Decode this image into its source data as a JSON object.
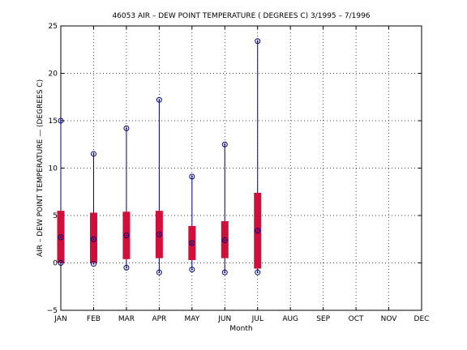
{
  "chart_data": {
    "type": "box",
    "title": "46053  AIR – DEW POINT TEMPERATURE ( DEGREES C) 3/1995 – 7/1996",
    "xlabel": "Month",
    "ylabel": "AIR – DEW POINT TEMPERATURE  —  (DEGREES C)",
    "categories": [
      "JAN",
      "FEB",
      "MAR",
      "APR",
      "MAY",
      "JUN",
      "JUL",
      "AUG",
      "SEP",
      "OCT",
      "NOV",
      "DEC"
    ],
    "yticks": [
      "−5",
      "0",
      "5",
      "10",
      "15",
      "20",
      "25"
    ],
    "ylim": [
      -5,
      25
    ],
    "grid": true,
    "colors": {
      "box": "#d0103a",
      "whisker": "#00007f",
      "marker": "#00007f"
    },
    "boxes": [
      {
        "month": "JAN",
        "min": 0.0,
        "q1": 0.0,
        "median": 2.7,
        "q3": 5.5,
        "max": 15.0
      },
      {
        "month": "FEB",
        "min": -0.1,
        "q1": 0.0,
        "median": 2.5,
        "q3": 5.3,
        "max": 11.5
      },
      {
        "month": "MAR",
        "min": -0.5,
        "q1": 0.4,
        "median": 2.9,
        "q3": 5.4,
        "max": 14.2
      },
      {
        "month": "APR",
        "min": -1.0,
        "q1": 0.5,
        "median": 3.0,
        "q3": 5.5,
        "max": 17.2
      },
      {
        "month": "MAY",
        "min": -0.7,
        "q1": 0.3,
        "median": 2.1,
        "q3": 3.9,
        "max": 9.1
      },
      {
        "month": "JUN",
        "min": -1.0,
        "q1": 0.5,
        "median": 2.4,
        "q3": 4.4,
        "max": 12.5
      },
      {
        "month": "JUL",
        "min": -1.0,
        "q1": -0.6,
        "median": 3.4,
        "q3": 7.4,
        "max": 23.4
      }
    ]
  }
}
